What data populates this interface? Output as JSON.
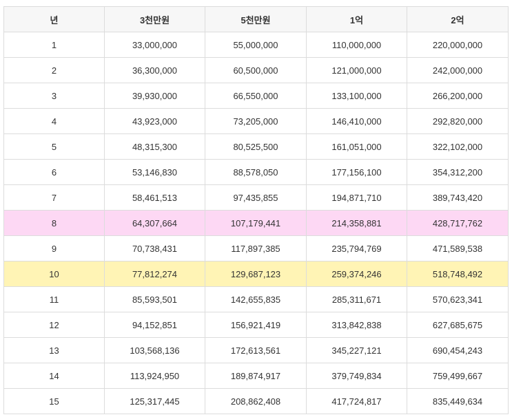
{
  "table": {
    "headers": [
      "년",
      "3천만원",
      "5천만원",
      "1억",
      "2억"
    ],
    "rows": [
      {
        "cells": [
          "1",
          "33,000,000",
          "55,000,000",
          "110,000,000",
          "220,000,000"
        ],
        "highlight": ""
      },
      {
        "cells": [
          "2",
          "36,300,000",
          "60,500,000",
          "121,000,000",
          "242,000,000"
        ],
        "highlight": ""
      },
      {
        "cells": [
          "3",
          "39,930,000",
          "66,550,000",
          "133,100,000",
          "266,200,000"
        ],
        "highlight": ""
      },
      {
        "cells": [
          "4",
          "43,923,000",
          "73,205,000",
          "146,410,000",
          "292,820,000"
        ],
        "highlight": ""
      },
      {
        "cells": [
          "5",
          "48,315,300",
          "80,525,500",
          "161,051,000",
          "322,102,000"
        ],
        "highlight": ""
      },
      {
        "cells": [
          "6",
          "53,146,830",
          "88,578,050",
          "177,156,100",
          "354,312,200"
        ],
        "highlight": ""
      },
      {
        "cells": [
          "7",
          "58,461,513",
          "97,435,855",
          "194,871,710",
          "389,743,420"
        ],
        "highlight": ""
      },
      {
        "cells": [
          "8",
          "64,307,664",
          "107,179,441",
          "214,358,881",
          "428,717,762"
        ],
        "highlight": "#fdd8f4"
      },
      {
        "cells": [
          "9",
          "70,738,431",
          "117,897,385",
          "235,794,769",
          "471,589,538"
        ],
        "highlight": ""
      },
      {
        "cells": [
          "10",
          "77,812,274",
          "129,687,123",
          "259,374,246",
          "518,748,492"
        ],
        "highlight": "#fff4b5"
      },
      {
        "cells": [
          "11",
          "85,593,501",
          "142,655,835",
          "285,311,671",
          "570,623,341"
        ],
        "highlight": ""
      },
      {
        "cells": [
          "12",
          "94,152,851",
          "156,921,419",
          "313,842,838",
          "627,685,675"
        ],
        "highlight": ""
      },
      {
        "cells": [
          "13",
          "103,568,136",
          "172,613,561",
          "345,227,121",
          "690,454,243"
        ],
        "highlight": ""
      },
      {
        "cells": [
          "14",
          "113,924,950",
          "189,874,917",
          "379,749,834",
          "759,499,667"
        ],
        "highlight": ""
      },
      {
        "cells": [
          "15",
          "125,317,445",
          "208,862,408",
          "417,724,817",
          "835,449,634"
        ],
        "highlight": ""
      }
    ]
  }
}
